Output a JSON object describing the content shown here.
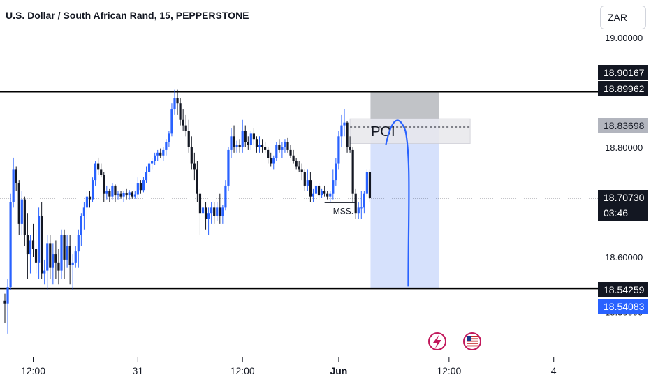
{
  "header": {
    "title": "U.S. Dollar / South African Rand, 15, PEPPERSTONE",
    "currency": "ZAR"
  },
  "colors": {
    "up": "#2962ff",
    "down": "#131722",
    "level_line": "#000000",
    "zone_fill": "#cfdcfb",
    "poi_fill": "#bdbdbd",
    "path": "#2962ff"
  },
  "icons": [
    "lightning-event-icon",
    "us-flag-icon"
  ],
  "price_tags": {
    "upper_level_a": "18.90167",
    "upper_level_b": "18.89962",
    "poi_level": "18.83698",
    "current_price": "18.70730",
    "countdown": "03:46",
    "lower_level_a": "18.54259",
    "lower_level_b": "18.54083"
  },
  "chart_data": {
    "type": "candlestick",
    "title": "U.S. Dollar / South African Rand, 15, PEPPERSTONE",
    "ylim": [
      18.5,
      19.0
    ],
    "y_ticks": [
      {
        "value": 19.0,
        "label": "19.00000"
      },
      {
        "value": 18.8,
        "label": "18.80000"
      },
      {
        "value": 18.6,
        "label": "18.60000"
      },
      {
        "value": 18.5,
        "label": "18.50000"
      }
    ],
    "x_ticks": [
      {
        "index": 10,
        "label": "12:00"
      },
      {
        "index": 47,
        "label": "31"
      },
      {
        "index": 84,
        "label": "12:00"
      },
      {
        "index": 118,
        "label": "Jun"
      },
      {
        "index": 157,
        "label": "12:00"
      },
      {
        "index": 194,
        "label": "4"
      }
    ],
    "horizontal_levels": [
      18.90167,
      18.54259
    ],
    "current_price": 18.7073,
    "annotations": [
      {
        "label": "POI",
        "y_top": 18.852,
        "y_bottom": 18.807
      },
      {
        "label": "MSS.",
        "y": 18.699
      }
    ],
    "ohlc": [
      [
        18.52,
        18.533,
        18.48,
        18.515
      ],
      [
        18.515,
        18.56,
        18.46,
        18.545
      ],
      [
        18.545,
        18.715,
        18.54,
        18.7
      ],
      [
        18.7,
        18.781,
        18.69,
        18.76
      ],
      [
        18.76,
        18.765,
        18.72,
        18.735
      ],
      [
        18.735,
        18.74,
        18.64,
        18.66
      ],
      [
        18.66,
        18.72,
        18.64,
        18.705
      ],
      [
        18.705,
        18.71,
        18.62,
        18.64
      ],
      [
        18.64,
        18.68,
        18.56,
        18.605
      ],
      [
        18.605,
        18.64,
        18.57,
        18.63
      ],
      [
        18.63,
        18.66,
        18.6,
        18.615
      ],
      [
        18.615,
        18.65,
        18.57,
        18.59
      ],
      [
        18.59,
        18.69,
        18.56,
        18.675
      ],
      [
        18.675,
        18.7,
        18.56,
        18.57
      ],
      [
        18.57,
        18.595,
        18.55,
        18.575
      ],
      [
        18.575,
        18.64,
        18.54,
        18.625
      ],
      [
        18.625,
        18.64,
        18.56,
        18.58
      ],
      [
        18.58,
        18.625,
        18.55,
        18.605
      ],
      [
        18.605,
        18.63,
        18.56,
        18.59
      ],
      [
        18.59,
        18.615,
        18.55,
        18.575
      ],
      [
        18.575,
        18.65,
        18.56,
        18.64
      ],
      [
        18.64,
        18.65,
        18.56,
        18.595
      ],
      [
        18.595,
        18.64,
        18.58,
        18.62
      ],
      [
        18.62,
        18.64,
        18.55,
        18.585
      ],
      [
        18.585,
        18.605,
        18.54,
        18.59
      ],
      [
        18.59,
        18.62,
        18.58,
        18.61
      ],
      [
        18.61,
        18.65,
        18.58,
        18.64
      ],
      [
        18.64,
        18.68,
        18.62,
        18.675
      ],
      [
        18.675,
        18.7,
        18.65,
        18.69
      ],
      [
        18.69,
        18.72,
        18.67,
        18.71
      ],
      [
        18.71,
        18.72,
        18.69,
        18.705
      ],
      [
        18.705,
        18.745,
        18.7,
        18.74
      ],
      [
        18.74,
        18.775,
        18.73,
        18.77
      ],
      [
        18.77,
        18.781,
        18.75,
        18.76
      ],
      [
        18.76,
        18.77,
        18.745,
        18.75
      ],
      [
        18.75,
        18.755,
        18.7,
        18.715
      ],
      [
        18.715,
        18.73,
        18.705,
        18.72
      ],
      [
        18.72,
        18.725,
        18.7,
        18.71
      ],
      [
        18.71,
        18.735,
        18.705,
        18.73
      ],
      [
        18.73,
        18.732,
        18.7,
        18.712
      ],
      [
        18.712,
        18.72,
        18.705,
        18.715
      ],
      [
        18.715,
        18.72,
        18.706,
        18.71
      ],
      [
        18.71,
        18.72,
        18.7,
        18.716
      ],
      [
        18.716,
        18.725,
        18.705,
        18.712
      ],
      [
        18.712,
        18.722,
        18.705,
        18.718
      ],
      [
        18.718,
        18.72,
        18.706,
        18.71
      ],
      [
        18.71,
        18.72,
        18.706,
        18.714
      ],
      [
        18.714,
        18.745,
        18.706,
        18.735
      ],
      [
        18.735,
        18.74,
        18.715,
        18.722
      ],
      [
        18.722,
        18.746,
        18.718,
        18.74
      ],
      [
        18.74,
        18.765,
        18.735,
        18.755
      ],
      [
        18.755,
        18.775,
        18.748,
        18.77
      ],
      [
        18.77,
        18.78,
        18.76,
        18.775
      ],
      [
        18.775,
        18.79,
        18.768,
        18.785
      ],
      [
        18.785,
        18.795,
        18.775,
        18.79
      ],
      [
        18.79,
        18.798,
        18.78,
        18.785
      ],
      [
        18.785,
        18.8,
        18.775,
        18.795
      ],
      [
        18.795,
        18.815,
        18.785,
        18.81
      ],
      [
        18.81,
        18.83,
        18.8,
        18.825
      ],
      [
        18.825,
        18.88,
        18.82,
        18.87
      ],
      [
        18.87,
        18.905,
        18.86,
        18.89
      ],
      [
        18.89,
        18.905,
        18.86,
        18.88
      ],
      [
        18.88,
        18.89,
        18.84,
        18.85
      ],
      [
        18.85,
        18.87,
        18.83,
        18.84
      ],
      [
        18.84,
        18.86,
        18.82,
        18.83
      ],
      [
        18.83,
        18.85,
        18.79,
        18.8
      ],
      [
        18.8,
        18.82,
        18.76,
        18.77
      ],
      [
        18.77,
        18.79,
        18.74,
        18.76
      ],
      [
        18.76,
        18.775,
        18.7,
        18.715
      ],
      [
        18.715,
        18.725,
        18.64,
        18.68
      ],
      [
        18.68,
        18.705,
        18.66,
        18.69
      ],
      [
        18.69,
        18.7,
        18.65,
        18.67
      ],
      [
        18.67,
        18.69,
        18.64,
        18.68
      ],
      [
        18.68,
        18.7,
        18.66,
        18.69
      ],
      [
        18.69,
        18.7,
        18.66,
        18.675
      ],
      [
        18.675,
        18.7,
        18.665,
        18.69
      ],
      [
        18.69,
        18.715,
        18.66,
        18.675
      ],
      [
        18.675,
        18.695,
        18.66,
        18.69
      ],
      [
        18.69,
        18.74,
        18.685,
        18.73
      ],
      [
        18.73,
        18.8,
        18.72,
        18.795
      ],
      [
        18.795,
        18.835,
        18.78,
        18.82
      ],
      [
        18.82,
        18.84,
        18.79,
        18.8
      ],
      [
        18.8,
        18.812,
        18.79,
        18.805
      ],
      [
        18.805,
        18.815,
        18.79,
        18.8
      ],
      [
        18.8,
        18.85,
        18.79,
        18.83
      ],
      [
        18.83,
        18.84,
        18.8,
        18.81
      ],
      [
        18.81,
        18.82,
        18.795,
        18.805
      ],
      [
        18.805,
        18.83,
        18.795,
        18.825
      ],
      [
        18.825,
        18.835,
        18.805,
        18.815
      ],
      [
        18.815,
        18.82,
        18.79,
        18.8
      ],
      [
        18.8,
        18.82,
        18.79,
        18.805
      ],
      [
        18.805,
        18.815,
        18.79,
        18.8
      ],
      [
        18.8,
        18.81,
        18.79,
        18.795
      ],
      [
        18.795,
        18.8,
        18.77,
        18.78
      ],
      [
        18.78,
        18.79,
        18.765,
        18.77
      ],
      [
        18.77,
        18.785,
        18.76,
        18.78
      ],
      [
        18.78,
        18.81,
        18.775,
        18.805
      ],
      [
        18.805,
        18.815,
        18.79,
        18.795
      ],
      [
        18.795,
        18.81,
        18.78,
        18.8
      ],
      [
        18.8,
        18.815,
        18.79,
        18.81
      ],
      [
        18.81,
        18.818,
        18.79,
        18.795
      ],
      [
        18.795,
        18.805,
        18.78,
        18.785
      ],
      [
        18.785,
        18.795,
        18.77,
        18.775
      ],
      [
        18.775,
        18.78,
        18.76,
        18.765
      ],
      [
        18.765,
        18.775,
        18.755,
        18.76
      ],
      [
        18.76,
        18.77,
        18.74,
        18.755
      ],
      [
        18.755,
        18.76,
        18.72,
        18.73
      ],
      [
        18.73,
        18.76,
        18.72,
        18.74
      ],
      [
        18.74,
        18.755,
        18.7,
        18.71
      ],
      [
        18.71,
        18.725,
        18.7,
        18.715
      ],
      [
        18.715,
        18.74,
        18.71,
        18.73
      ],
      [
        18.73,
        18.735,
        18.705,
        18.712
      ],
      [
        18.712,
        18.725,
        18.708,
        18.72
      ],
      [
        18.72,
        18.73,
        18.71,
        18.715
      ],
      [
        18.715,
        18.72,
        18.705,
        18.71
      ],
      [
        18.71,
        18.72,
        18.7,
        18.715
      ],
      [
        18.715,
        18.76,
        18.705,
        18.74
      ],
      [
        18.74,
        18.78,
        18.73,
        18.77
      ],
      [
        18.77,
        18.83,
        18.76,
        18.82
      ],
      [
        18.82,
        18.86,
        18.8,
        18.84
      ],
      [
        18.84,
        18.87,
        18.82,
        18.845
      ],
      [
        18.845,
        18.848,
        18.79,
        18.8
      ],
      [
        18.8,
        18.82,
        18.79,
        18.795
      ],
      [
        18.795,
        18.8,
        18.7,
        18.715
      ],
      [
        18.715,
        18.725,
        18.67,
        18.68
      ],
      [
        18.68,
        18.7,
        18.67,
        18.69
      ],
      [
        18.69,
        18.72,
        18.67,
        18.69
      ],
      [
        18.69,
        18.72,
        18.68,
        18.715
      ],
      [
        18.715,
        18.76,
        18.71,
        18.755
      ],
      [
        18.755,
        18.76,
        18.7,
        18.707
      ]
    ]
  }
}
